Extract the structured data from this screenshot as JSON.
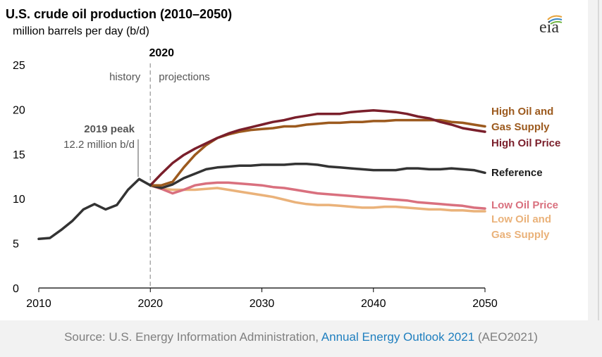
{
  "header": {
    "title": "U.S. crude oil production (2010–2050)",
    "subtitle": "million barrels per day (b/d)",
    "logo_text": "eia"
  },
  "annotations": {
    "year_marker": "2020",
    "history": "history",
    "projections": "projections",
    "peak_title": "2019 peak",
    "peak_value": "12.2 million b/d"
  },
  "source": {
    "prefix": "Source: U.S. Energy Information Administration, ",
    "link": "Annual Energy Outlook 2021",
    "suffix": " (AEO2021)"
  },
  "chart_data": {
    "type": "line",
    "title": "U.S. crude oil production (2010–2050)",
    "ylabel": "million barrels per day (b/d)",
    "xlim": [
      2010,
      2050
    ],
    "ylim": [
      0,
      25
    ],
    "x_ticks": [
      2010,
      2020,
      2030,
      2040,
      2050
    ],
    "y_ticks": [
      0,
      5,
      10,
      15,
      20,
      25
    ],
    "grid": false,
    "legend_position": "right",
    "vertical_marker": {
      "x": 2020,
      "label": "2020"
    },
    "history": {
      "name": "",
      "color": "#333333",
      "x": [
        2010,
        2011,
        2012,
        2013,
        2014,
        2015,
        2016,
        2017,
        2018,
        2019,
        2020
      ],
      "y": [
        5.5,
        5.6,
        6.5,
        7.5,
        8.8,
        9.4,
        8.8,
        9.3,
        11.0,
        12.2,
        11.5
      ]
    },
    "series": [
      {
        "name": "High Oil and Gas Supply",
        "color": "#9c5a1e",
        "x": [
          2020,
          2021,
          2022,
          2023,
          2024,
          2025,
          2026,
          2027,
          2028,
          2029,
          2030,
          2031,
          2032,
          2033,
          2034,
          2035,
          2036,
          2037,
          2038,
          2039,
          2040,
          2041,
          2042,
          2043,
          2044,
          2045,
          2046,
          2047,
          2048,
          2049,
          2050
        ],
        "y": [
          11.5,
          11.5,
          11.9,
          13.5,
          14.9,
          16.0,
          16.8,
          17.2,
          17.5,
          17.7,
          17.8,
          17.9,
          18.1,
          18.1,
          18.3,
          18.4,
          18.5,
          18.5,
          18.6,
          18.6,
          18.7,
          18.7,
          18.8,
          18.8,
          18.8,
          18.8,
          18.8,
          18.6,
          18.5,
          18.3,
          18.1
        ]
      },
      {
        "name": "High Oil Price",
        "color": "#7a1f2b",
        "x": [
          2020,
          2021,
          2022,
          2023,
          2024,
          2025,
          2026,
          2027,
          2028,
          2029,
          2030,
          2031,
          2032,
          2033,
          2034,
          2035,
          2036,
          2037,
          2038,
          2039,
          2040,
          2041,
          2042,
          2043,
          2044,
          2045,
          2046,
          2047,
          2048,
          2049,
          2050
        ],
        "y": [
          11.5,
          12.8,
          14.0,
          14.9,
          15.6,
          16.2,
          16.8,
          17.3,
          17.7,
          18.0,
          18.3,
          18.6,
          18.8,
          19.1,
          19.3,
          19.5,
          19.5,
          19.5,
          19.7,
          19.8,
          19.9,
          19.8,
          19.7,
          19.5,
          19.2,
          19.0,
          18.6,
          18.3,
          17.9,
          17.7,
          17.5
        ]
      },
      {
        "name": "Reference",
        "color": "#333333",
        "x": [
          2020,
          2021,
          2022,
          2023,
          2024,
          2025,
          2026,
          2027,
          2028,
          2029,
          2030,
          2031,
          2032,
          2033,
          2034,
          2035,
          2036,
          2037,
          2038,
          2039,
          2040,
          2041,
          2042,
          2043,
          2044,
          2045,
          2046,
          2047,
          2048,
          2049,
          2050
        ],
        "y": [
          11.5,
          11.2,
          11.6,
          12.3,
          12.8,
          13.3,
          13.5,
          13.6,
          13.7,
          13.7,
          13.8,
          13.8,
          13.8,
          13.9,
          13.9,
          13.8,
          13.6,
          13.5,
          13.4,
          13.3,
          13.2,
          13.2,
          13.2,
          13.4,
          13.4,
          13.3,
          13.3,
          13.4,
          13.3,
          13.2,
          12.9
        ]
      },
      {
        "name": "Low Oil Price",
        "color": "#d9707e",
        "x": [
          2020,
          2021,
          2022,
          2023,
          2024,
          2025,
          2026,
          2027,
          2028,
          2029,
          2030,
          2031,
          2032,
          2033,
          2034,
          2035,
          2036,
          2037,
          2038,
          2039,
          2040,
          2041,
          2042,
          2043,
          2044,
          2045,
          2046,
          2047,
          2048,
          2049,
          2050
        ],
        "y": [
          11.5,
          11.1,
          10.6,
          11.0,
          11.5,
          11.7,
          11.8,
          11.8,
          11.7,
          11.6,
          11.5,
          11.3,
          11.2,
          11.0,
          10.8,
          10.6,
          10.5,
          10.4,
          10.3,
          10.2,
          10.1,
          10.0,
          9.9,
          9.8,
          9.6,
          9.5,
          9.4,
          9.3,
          9.2,
          9.0,
          8.9
        ]
      },
      {
        "name": "Low Oil and Gas Supply",
        "color": "#eab27a",
        "x": [
          2020,
          2021,
          2022,
          2023,
          2024,
          2025,
          2026,
          2027,
          2028,
          2029,
          2030,
          2031,
          2032,
          2033,
          2034,
          2035,
          2036,
          2037,
          2038,
          2039,
          2040,
          2041,
          2042,
          2043,
          2044,
          2045,
          2046,
          2047,
          2048,
          2049,
          2050
        ],
        "y": [
          11.5,
          11.1,
          11.0,
          11.0,
          11.0,
          11.1,
          11.2,
          11.0,
          10.8,
          10.6,
          10.4,
          10.2,
          9.9,
          9.6,
          9.4,
          9.3,
          9.3,
          9.2,
          9.1,
          9.0,
          9.0,
          9.1,
          9.1,
          9.0,
          8.9,
          8.8,
          8.8,
          8.7,
          8.7,
          8.6,
          8.6
        ]
      }
    ],
    "legend": [
      {
        "lines": [
          "High Oil and",
          "Gas Supply"
        ],
        "color": "#9c5a1e"
      },
      {
        "lines": [
          "High Oil Price"
        ],
        "color": "#7a1f2b"
      },
      {
        "lines": [
          "Reference"
        ],
        "color": "#1a1a1a"
      },
      {
        "lines": [
          "Low Oil Price"
        ],
        "color": "#d9707e"
      },
      {
        "lines": [
          "Low Oil and",
          "Gas Supply"
        ],
        "color": "#eab27a"
      }
    ]
  }
}
